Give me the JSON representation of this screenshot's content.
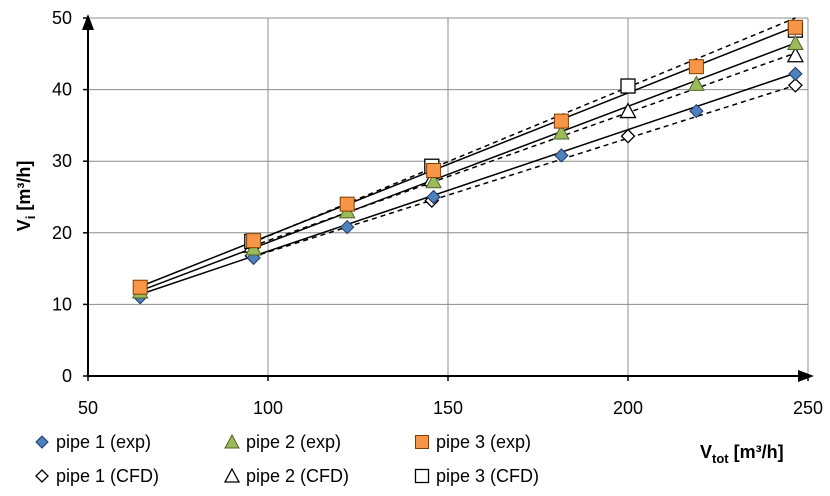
{
  "chart_data": {
    "type": "scatter",
    "xlabel": {
      "main": "V",
      "sub": "tot",
      "unit": " [m³/h]"
    },
    "ylabel": {
      "main": "V",
      "sub": "i",
      "unit": " [m³/h]"
    },
    "xlim": [
      50,
      250
    ],
    "ylim": [
      0,
      50
    ],
    "xticks": [
      50,
      100,
      150,
      200,
      250
    ],
    "yticks": [
      0,
      10,
      20,
      30,
      40,
      50
    ],
    "grid": true,
    "legend_position": "bottom",
    "series": [
      {
        "name": "pipe 1 (exp)",
        "marker": "diamond-filled",
        "color": "#4F81BD",
        "stroke": "#1F3864",
        "x": [
          64.5,
          96,
          122,
          146,
          181.5,
          219,
          246.5
        ],
        "y": [
          11.0,
          16.5,
          20.8,
          25.0,
          30.8,
          37.0,
          42.2
        ],
        "fit": {
          "style": "solid",
          "from": [
            64.5,
            11.4
          ],
          "to": [
            246.5,
            42.3
          ]
        }
      },
      {
        "name": "pipe 2 (exp)",
        "marker": "triangle-filled",
        "color": "#9BBB59",
        "stroke": "#4F6228",
        "x": [
          64.5,
          96,
          122,
          146,
          181.5,
          219,
          246.5
        ],
        "y": [
          11.8,
          17.8,
          23.0,
          27.2,
          34.0,
          40.8,
          46.5
        ],
        "fit": {
          "style": "solid",
          "from": [
            64.5,
            11.9
          ],
          "to": [
            246.5,
            46.5
          ]
        }
      },
      {
        "name": "pipe 3 (exp)",
        "marker": "square-filled",
        "color": "#F79646",
        "stroke": "#7F3F00",
        "x": [
          64.5,
          96,
          122,
          146,
          181.5,
          219,
          246.5
        ],
        "y": [
          12.4,
          18.9,
          24.0,
          28.7,
          35.6,
          43.2,
          48.7
        ],
        "fit": {
          "style": "solid",
          "from": [
            64.5,
            12.5
          ],
          "to": [
            246.5,
            48.8
          ]
        }
      },
      {
        "name": "pipe 1 (CFD)",
        "marker": "diamond-open",
        "color": "#000000",
        "stroke": "#000000",
        "x": [
          95.5,
          145.5,
          200,
          246.5
        ],
        "y": [
          16.8,
          24.5,
          33.5,
          40.6
        ],
        "fit": {
          "style": "dashed",
          "from": [
            95.5,
            16.6
          ],
          "to": [
            246.5,
            40.6
          ]
        }
      },
      {
        "name": "pipe 2 (CFD)",
        "marker": "triangle-open",
        "color": "#000000",
        "stroke": "#000000",
        "x": [
          95.5,
          145.5,
          200,
          246.5
        ],
        "y": [
          18.2,
          27.5,
          37.0,
          44.8
        ],
        "fit": {
          "style": "dashed",
          "from": [
            95.5,
            18.1
          ],
          "to": [
            246.5,
            45.1
          ]
        }
      },
      {
        "name": "pipe 3 (CFD)",
        "marker": "square-open",
        "color": "#000000",
        "stroke": "#000000",
        "x": [
          95.5,
          145.5,
          200,
          246.5
        ],
        "y": [
          18.8,
          29.3,
          40.5,
          48.3
        ],
        "fit": {
          "style": "dashed",
          "from": [
            95.5,
            18.6
          ],
          "to": [
            246.5,
            50.0
          ]
        }
      }
    ]
  }
}
